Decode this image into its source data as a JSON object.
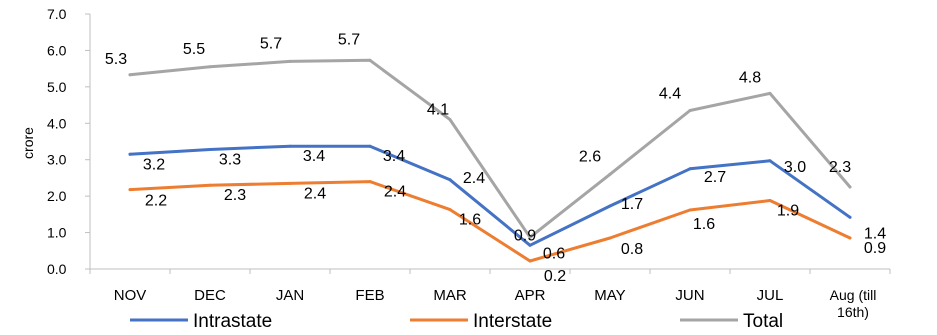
{
  "chart_data": {
    "type": "line",
    "ylabel": "crore",
    "ylim": [
      0,
      7
    ],
    "yticks": [
      "0.0",
      "1.0",
      "2.0",
      "3.0",
      "4.0",
      "5.0",
      "6.0",
      "7.0"
    ],
    "categories": [
      "NOV",
      "DEC",
      "JAN",
      "FEB",
      "MAR",
      "APR",
      "MAY",
      "JUN",
      "JUL",
      "Aug (till 16th)"
    ],
    "grid": false,
    "legend": "bottom",
    "series": [
      {
        "name": "Intrastate",
        "color": "#4472C4",
        "values": [
          3.15,
          3.28,
          3.37,
          3.37,
          2.45,
          0.65,
          1.73,
          2.75,
          2.97,
          1.42
        ],
        "labels": [
          "3.2",
          "3.3",
          "3.4",
          "3.4",
          "2.4",
          "0.6",
          "1.7",
          "2.7",
          "3.0",
          "1.4"
        ]
      },
      {
        "name": "Interstate",
        "color": "#ED7D31",
        "values": [
          2.18,
          2.3,
          2.35,
          2.4,
          1.63,
          0.22,
          0.85,
          1.62,
          1.88,
          0.85
        ],
        "labels": [
          "2.2",
          "2.3",
          "2.4",
          "2.4",
          "1.6",
          "0.2",
          "0.8",
          "1.6",
          "1.9",
          "0.9"
        ]
      },
      {
        "name": "Total",
        "color": "#A5A5A5",
        "values": [
          5.33,
          5.55,
          5.7,
          5.73,
          4.1,
          0.87,
          2.6,
          4.35,
          4.82,
          2.25
        ],
        "labels": [
          "5.3",
          "5.5",
          "5.7",
          "5.7",
          "4.1",
          "0.9",
          "2.6",
          "4.4",
          "4.8",
          "2.3"
        ]
      }
    ]
  }
}
